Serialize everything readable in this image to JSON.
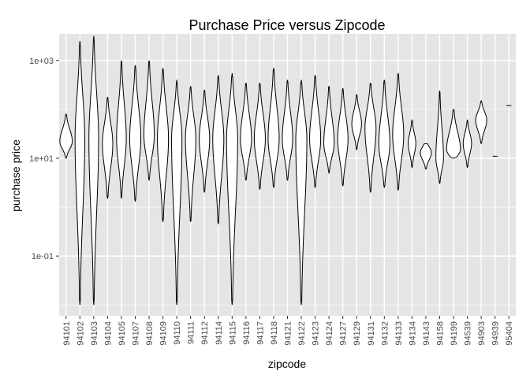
{
  "chart_data": {
    "type": "violin",
    "title": "Purchase Price versus Zipcode",
    "xlabel": "zipcode",
    "ylabel": "purchase price",
    "yscale": "log10",
    "ylim": [
      0.006,
      3500
    ],
    "y_ticks": [
      {
        "value": 0.1,
        "label": "1e-01"
      },
      {
        "value": 10,
        "label": "1e+01"
      },
      {
        "value": 1000,
        "label": "1e+03"
      }
    ],
    "grid": true,
    "legend": "none",
    "background_color": "#e5e5e5",
    "grid_color": "#ffffff",
    "categories": [
      "94101",
      "94102",
      "94103",
      "94104",
      "94105",
      "94107",
      "94108",
      "94109",
      "94110",
      "94111",
      "94112",
      "94114",
      "94115",
      "94116",
      "94117",
      "94118",
      "94121",
      "94122",
      "94123",
      "94124",
      "94127",
      "94129",
      "94131",
      "94132",
      "94133",
      "94134",
      "94143",
      "94158",
      "94199",
      "94539",
      "94903",
      "94939",
      "95404"
    ],
    "violins": [
      {
        "zipcode": "94101",
        "min": 10,
        "max": 80,
        "median": 22,
        "width": 0.9
      },
      {
        "zipcode": "94102",
        "min": 0.01,
        "max": 2500,
        "median": 25,
        "width": 0.7
      },
      {
        "zipcode": "94103",
        "min": 0.01,
        "max": 3200,
        "median": 25,
        "width": 0.7
      },
      {
        "zipcode": "94104",
        "min": 1.5,
        "max": 180,
        "median": 20,
        "width": 0.75
      },
      {
        "zipcode": "94105",
        "min": 1.5,
        "max": 1000,
        "median": 25,
        "width": 0.7
      },
      {
        "zipcode": "94107",
        "min": 1.3,
        "max": 800,
        "median": 25,
        "width": 0.8
      },
      {
        "zipcode": "94108",
        "min": 3.5,
        "max": 1000,
        "median": 30,
        "width": 0.75
      },
      {
        "zipcode": "94109",
        "min": 0.5,
        "max": 700,
        "median": 25,
        "width": 0.8
      },
      {
        "zipcode": "94110",
        "min": 0.01,
        "max": 400,
        "median": 25,
        "width": 0.75
      },
      {
        "zipcode": "94111",
        "min": 0.5,
        "max": 300,
        "median": 25,
        "width": 0.75
      },
      {
        "zipcode": "94112",
        "min": 2,
        "max": 250,
        "median": 25,
        "width": 0.75
      },
      {
        "zipcode": "94114",
        "min": 0.45,
        "max": 500,
        "median": 25,
        "width": 0.8
      },
      {
        "zipcode": "94115",
        "min": 0.01,
        "max": 550,
        "median": 25,
        "width": 0.8
      },
      {
        "zipcode": "94116",
        "min": 3.5,
        "max": 350,
        "median": 25,
        "width": 0.8
      },
      {
        "zipcode": "94117",
        "min": 2.3,
        "max": 350,
        "median": 25,
        "width": 0.8
      },
      {
        "zipcode": "94118",
        "min": 2.5,
        "max": 700,
        "median": 25,
        "width": 0.8
      },
      {
        "zipcode": "94121",
        "min": 3.5,
        "max": 400,
        "median": 25,
        "width": 0.75
      },
      {
        "zipcode": "94122",
        "min": 0.01,
        "max": 400,
        "median": 25,
        "width": 0.8
      },
      {
        "zipcode": "94123",
        "min": 2.5,
        "max": 500,
        "median": 25,
        "width": 0.8
      },
      {
        "zipcode": "94124",
        "min": 5,
        "max": 300,
        "median": 20,
        "width": 0.75
      },
      {
        "zipcode": "94127",
        "min": 2.7,
        "max": 270,
        "median": 25,
        "width": 0.75
      },
      {
        "zipcode": "94129",
        "min": 15,
        "max": 200,
        "median": 50,
        "width": 0.7
      },
      {
        "zipcode": "94131",
        "min": 2,
        "max": 350,
        "median": 40,
        "width": 0.8
      },
      {
        "zipcode": "94132",
        "min": 2.5,
        "max": 400,
        "median": 20,
        "width": 0.8
      },
      {
        "zipcode": "94133",
        "min": 2.2,
        "max": 550,
        "median": 30,
        "width": 0.8
      },
      {
        "zipcode": "94134",
        "min": 6.5,
        "max": 60,
        "median": 20,
        "width": 0.55
      },
      {
        "zipcode": "94143",
        "min": 6,
        "max": 20,
        "median": 13,
        "width": 0.8
      },
      {
        "zipcode": "94158",
        "min": 3,
        "max": 240,
        "median": 10,
        "width": 0.55
      },
      {
        "zipcode": "94199",
        "min": 10,
        "max": 100,
        "median": 15,
        "width": 1.0
      },
      {
        "zipcode": "94539",
        "min": 6.5,
        "max": 60,
        "median": 20,
        "width": 0.6
      },
      {
        "zipcode": "94903",
        "min": 20,
        "max": 150,
        "median": 60,
        "width": 0.8
      },
      {
        "zipcode": "94939",
        "min": 11,
        "max": 11,
        "median": 11,
        "width": 0.5
      },
      {
        "zipcode": "95404",
        "min": 120,
        "max": 120,
        "median": 120,
        "width": 0.5
      }
    ]
  }
}
